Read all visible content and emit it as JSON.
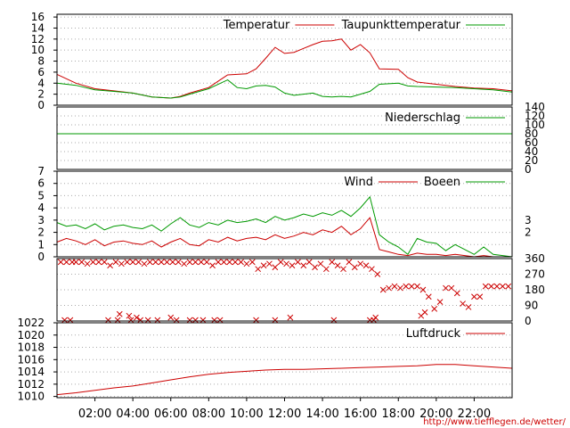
{
  "source_url": "http://www.tiefflegen.de/wetter/",
  "colors": {
    "series_a": "#cc0000",
    "series_b": "#009900",
    "grid": "#aaaaaa",
    "axis": "#000000",
    "background": "#ffffff",
    "url_text": "#cc0000"
  },
  "chart_data": [
    {
      "type": "line",
      "panel": "temperature",
      "legend": [
        "Temperatur",
        "Taupunkttemperatur"
      ],
      "yticks": [
        0,
        2,
        4,
        6,
        8,
        10,
        12,
        14,
        16
      ],
      "ylim": [
        0,
        16.5
      ],
      "grid": true,
      "legend_placement": "top-right",
      "series": [
        {
          "name": "Temperatur",
          "x": [
            0,
            1,
            2,
            3,
            4,
            5,
            6,
            6.5,
            7,
            8,
            9,
            9.5,
            10,
            10.5,
            11,
            11.5,
            12,
            12.5,
            13,
            13.5,
            14,
            14.5,
            15,
            15.5,
            16,
            16.5,
            17,
            18,
            18.5,
            19,
            20,
            21,
            22,
            23,
            24
          ],
          "y": [
            5.6,
            4.0,
            3.0,
            2.6,
            2.2,
            1.5,
            1.3,
            1.6,
            2.2,
            3.2,
            5.5,
            5.6,
            5.7,
            6.6,
            8.5,
            10.5,
            9.4,
            9.6,
            10.3,
            11.0,
            11.6,
            11.7,
            12.0,
            10.0,
            11.0,
            9.5,
            6.6,
            6.5,
            5.0,
            4.2,
            3.8,
            3.4,
            3.1,
            3.0,
            2.6
          ]
        },
        {
          "name": "Taupunkttemperatur",
          "x": [
            0,
            1,
            2,
            3,
            4,
            5,
            6,
            6.5,
            7,
            8,
            9,
            9.5,
            10,
            10.5,
            11,
            11.5,
            12,
            12.5,
            13,
            13.5,
            14,
            14.5,
            15,
            15.5,
            16,
            16.5,
            17,
            18,
            18.5,
            19,
            20,
            21,
            22,
            23,
            24
          ],
          "y": [
            4.0,
            3.6,
            2.8,
            2.5,
            2.2,
            1.5,
            1.3,
            1.5,
            2.0,
            3.0,
            4.6,
            3.2,
            3.0,
            3.5,
            3.6,
            3.3,
            2.2,
            1.8,
            2.0,
            2.2,
            1.6,
            1.5,
            1.6,
            1.5,
            2.0,
            2.5,
            3.8,
            4.0,
            3.5,
            3.4,
            3.3,
            3.2,
            3.0,
            2.8,
            2.4
          ]
        }
      ]
    },
    {
      "type": "line",
      "panel": "precipitation",
      "legend": [
        "Niederschlag"
      ],
      "yticks_right": [
        0,
        20,
        40,
        60,
        80,
        100,
        120,
        140
      ],
      "ylim": [
        0,
        140
      ],
      "grid": true,
      "legend_placement": "top-right",
      "series": [
        {
          "name": "Niederschlag",
          "x": [
            0,
            24
          ],
          "y": [
            80,
            80
          ]
        }
      ]
    },
    {
      "type": "line",
      "panel": "wind",
      "legend": [
        "Wind",
        "Boeen"
      ],
      "yticks": [
        0,
        1,
        2,
        3,
        4,
        5,
        6,
        7
      ],
      "ylim": [
        0,
        7
      ],
      "yticks_right": [
        2,
        3
      ],
      "grid": true,
      "legend_placement": "top-right",
      "series": [
        {
          "name": "Wind",
          "x": [
            0,
            0.5,
            1,
            1.5,
            2,
            2.5,
            3,
            3.5,
            4,
            4.5,
            5,
            5.5,
            6,
            6.5,
            7,
            7.5,
            8,
            8.5,
            9,
            9.5,
            10,
            10.5,
            11,
            11.5,
            12,
            12.5,
            13,
            13.5,
            14,
            14.5,
            15,
            15.5,
            16,
            16.5,
            17,
            17.5,
            18,
            18.5,
            19,
            19.5,
            20,
            20.5,
            21,
            21.5,
            22,
            22.5,
            23,
            23.5,
            24
          ],
          "y": [
            1.2,
            1.5,
            1.3,
            1.0,
            1.4,
            0.9,
            1.2,
            1.3,
            1.1,
            1.0,
            1.3,
            0.8,
            1.2,
            1.5,
            1.0,
            0.9,
            1.4,
            1.2,
            1.6,
            1.3,
            1.5,
            1.6,
            1.4,
            1.8,
            1.5,
            1.7,
            2.0,
            1.8,
            2.2,
            2.0,
            2.5,
            1.8,
            2.3,
            3.2,
            0.6,
            0.4,
            0.2,
            0.1,
            0.3,
            0.2,
            0.2,
            0.1,
            0.2,
            0.1,
            0.0,
            0.1,
            0.0,
            0.0,
            0.0
          ]
        },
        {
          "name": "Boeen",
          "x": [
            0,
            0.5,
            1,
            1.5,
            2,
            2.5,
            3,
            3.5,
            4,
            4.5,
            5,
            5.5,
            6,
            6.5,
            7,
            7.5,
            8,
            8.5,
            9,
            9.5,
            10,
            10.5,
            11,
            11.5,
            12,
            12.5,
            13,
            13.5,
            14,
            14.5,
            15,
            15.5,
            16,
            16.5,
            17,
            17.5,
            18,
            18.5,
            19,
            19.5,
            20,
            20.5,
            21,
            21.5,
            22,
            22.5,
            23,
            23.5,
            24
          ],
          "y": [
            2.8,
            2.5,
            2.6,
            2.3,
            2.7,
            2.2,
            2.5,
            2.6,
            2.4,
            2.3,
            2.6,
            2.1,
            2.7,
            3.2,
            2.6,
            2.4,
            2.8,
            2.6,
            3.0,
            2.8,
            2.9,
            3.1,
            2.8,
            3.3,
            3.0,
            3.2,
            3.5,
            3.3,
            3.6,
            3.4,
            3.8,
            3.3,
            4.0,
            4.9,
            1.8,
            1.2,
            0.8,
            0.2,
            1.5,
            1.2,
            1.1,
            0.5,
            1.0,
            0.6,
            0.2,
            0.8,
            0.2,
            0.1,
            0.0
          ]
        }
      ]
    },
    {
      "type": "scatter",
      "panel": "wind_direction",
      "yticks_right": [
        0,
        90,
        180,
        270,
        360
      ],
      "ylim": [
        0,
        360
      ],
      "grid": true,
      "series": [
        {
          "name": "",
          "x": [
            0.2,
            0.5,
            0.8,
            1.0,
            1.3,
            1.6,
            1.9,
            2.2,
            2.5,
            2.8,
            3.1,
            3.4,
            3.7,
            4.0,
            4.3,
            4.6,
            4.9,
            5.2,
            5.5,
            5.8,
            6.1,
            6.4,
            6.7,
            7.0,
            7.3,
            7.6,
            7.9,
            8.2,
            8.5,
            8.8,
            9.1,
            9.4,
            9.7,
            10.0,
            10.3,
            10.6,
            10.9,
            11.2,
            11.5,
            11.8,
            12.1,
            12.4,
            12.7,
            13.0,
            13.3,
            13.6,
            13.9,
            14.2,
            14.5,
            14.8,
            15.1,
            15.4,
            15.7,
            16.0,
            16.3,
            16.6,
            16.9,
            17.2,
            17.5,
            17.8,
            18.1,
            18.4,
            18.7,
            19.0,
            19.3,
            19.6,
            19.9,
            20.2,
            20.5,
            20.8,
            21.1,
            21.4,
            21.7,
            22.0,
            22.3,
            22.6,
            22.9,
            23.2,
            23.5,
            23.8,
            0.4,
            0.7,
            2.7,
            3.2,
            3.9,
            4.4,
            4.8,
            5.3,
            6.3,
            7.0,
            7.3,
            7.7,
            8.3,
            8.6,
            10.5,
            11.5,
            14.6,
            16.5,
            16.7,
            3.3,
            3.8,
            4.2,
            6.0,
            12.3,
            16.8,
            19.2,
            19.4
          ],
          "y": [
            340,
            340,
            340,
            340,
            340,
            330,
            340,
            340,
            340,
            320,
            340,
            330,
            340,
            340,
            340,
            330,
            340,
            340,
            340,
            340,
            340,
            340,
            330,
            340,
            340,
            340,
            340,
            320,
            340,
            340,
            340,
            340,
            340,
            330,
            340,
            300,
            320,
            330,
            310,
            340,
            330,
            320,
            340,
            320,
            340,
            310,
            330,
            300,
            340,
            320,
            300,
            340,
            310,
            330,
            320,
            300,
            270,
            180,
            190,
            200,
            190,
            200,
            200,
            200,
            180,
            140,
            70,
            110,
            190,
            190,
            160,
            100,
            80,
            140,
            140,
            200,
            200,
            200,
            200,
            200,
            5,
            5,
            5,
            5,
            5,
            5,
            5,
            5,
            5,
            5,
            5,
            5,
            5,
            5,
            5,
            5,
            5,
            5,
            5,
            40,
            30,
            20,
            20,
            20,
            20,
            30,
            50
          ]
        }
      ]
    },
    {
      "type": "line",
      "panel": "pressure",
      "legend": [
        "Luftdruck"
      ],
      "yticks": [
        1010,
        1012,
        1014,
        1016,
        1018,
        1020,
        1022
      ],
      "ylim": [
        1009.8,
        1022
      ],
      "grid": true,
      "legend_placement": "top-right",
      "xticks": [
        "02:00",
        "04:00",
        "06:00",
        "08:00",
        "10:00",
        "12:00",
        "14:00",
        "16:00",
        "18:00",
        "20:00",
        "22:00"
      ],
      "series": [
        {
          "name": "Luftdruck",
          "x": [
            0,
            1,
            2,
            3,
            4,
            5,
            6,
            7,
            8,
            9,
            10,
            11,
            12,
            13,
            14,
            15,
            16,
            17,
            18,
            19,
            20,
            21,
            22,
            23,
            24
          ],
          "y": [
            1010.3,
            1010.6,
            1011.0,
            1011.4,
            1011.7,
            1012.2,
            1012.7,
            1013.2,
            1013.6,
            1013.9,
            1014.1,
            1014.3,
            1014.4,
            1014.4,
            1014.5,
            1014.6,
            1014.7,
            1014.8,
            1014.9,
            1015.0,
            1015.2,
            1015.2,
            1015.0,
            1014.8,
            1014.6
          ]
        }
      ]
    }
  ]
}
